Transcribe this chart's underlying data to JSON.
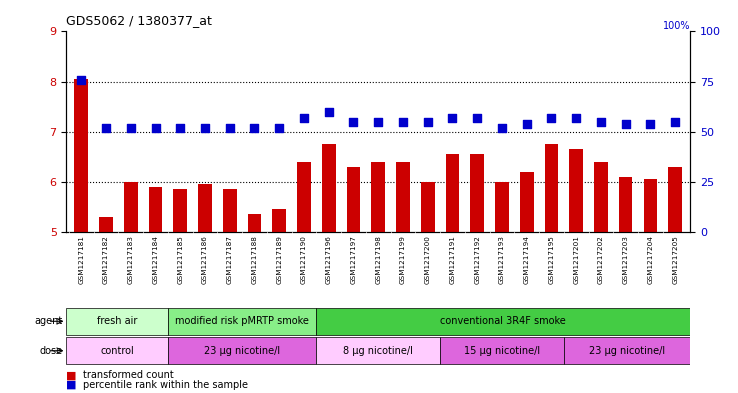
{
  "title": "GDS5062 / 1380377_at",
  "samples": [
    "GSM1217181",
    "GSM1217182",
    "GSM1217183",
    "GSM1217184",
    "GSM1217185",
    "GSM1217186",
    "GSM1217187",
    "GSM1217188",
    "GSM1217189",
    "GSM1217190",
    "GSM1217196",
    "GSM1217197",
    "GSM1217198",
    "GSM1217199",
    "GSM1217200",
    "GSM1217191",
    "GSM1217192",
    "GSM1217193",
    "GSM1217194",
    "GSM1217195",
    "GSM1217201",
    "GSM1217202",
    "GSM1217203",
    "GSM1217204",
    "GSM1217205"
  ],
  "transformed_count": [
    8.05,
    5.3,
    6.0,
    5.9,
    5.85,
    5.95,
    5.85,
    5.35,
    5.45,
    6.4,
    6.75,
    6.3,
    6.4,
    6.4,
    6.0,
    6.55,
    6.55,
    6.0,
    6.2,
    6.75,
    6.65,
    6.4,
    6.1,
    6.05,
    6.3
  ],
  "percentile_rank": [
    76,
    52,
    52,
    52,
    52,
    52,
    52,
    52,
    52,
    57,
    60,
    55,
    55,
    55,
    55,
    57,
    57,
    52,
    54,
    57,
    57,
    55,
    54,
    54,
    55
  ],
  "ylim_left": [
    5,
    9
  ],
  "ylim_right": [
    0,
    100
  ],
  "yticks_left": [
    5,
    6,
    7,
    8,
    9
  ],
  "yticks_right": [
    0,
    25,
    50,
    75,
    100
  ],
  "bar_color": "#cc0000",
  "dot_color": "#0000cc",
  "hline_dotted": [
    6,
    7,
    8
  ],
  "agent_groups": [
    {
      "label": "fresh air",
      "start": 0,
      "end": 4,
      "color": "#ccffcc"
    },
    {
      "label": "modified risk pMRTP smoke",
      "start": 4,
      "end": 10,
      "color": "#88ee88"
    },
    {
      "label": "conventional 3R4F smoke",
      "start": 10,
      "end": 25,
      "color": "#44cc44"
    }
  ],
  "dose_groups": [
    {
      "label": "control",
      "start": 0,
      "end": 4,
      "color": "#ffccff"
    },
    {
      "label": "23 µg nicotine/l",
      "start": 4,
      "end": 10,
      "color": "#dd66dd"
    },
    {
      "label": "8 µg nicotine/l",
      "start": 10,
      "end": 15,
      "color": "#ffccff"
    },
    {
      "label": "15 µg nicotine/l",
      "start": 15,
      "end": 20,
      "color": "#dd66dd"
    },
    {
      "label": "23 µg nicotine/l",
      "start": 20,
      "end": 25,
      "color": "#dd66dd"
    }
  ],
  "legend_items": [
    {
      "label": "transformed count",
      "color": "#cc0000"
    },
    {
      "label": "percentile rank within the sample",
      "color": "#0000cc"
    }
  ],
  "bar_width": 0.55,
  "dot_size": 35,
  "dot_marker": "s",
  "xtick_bg_color": "#d8d8d8",
  "n_samples": 25
}
